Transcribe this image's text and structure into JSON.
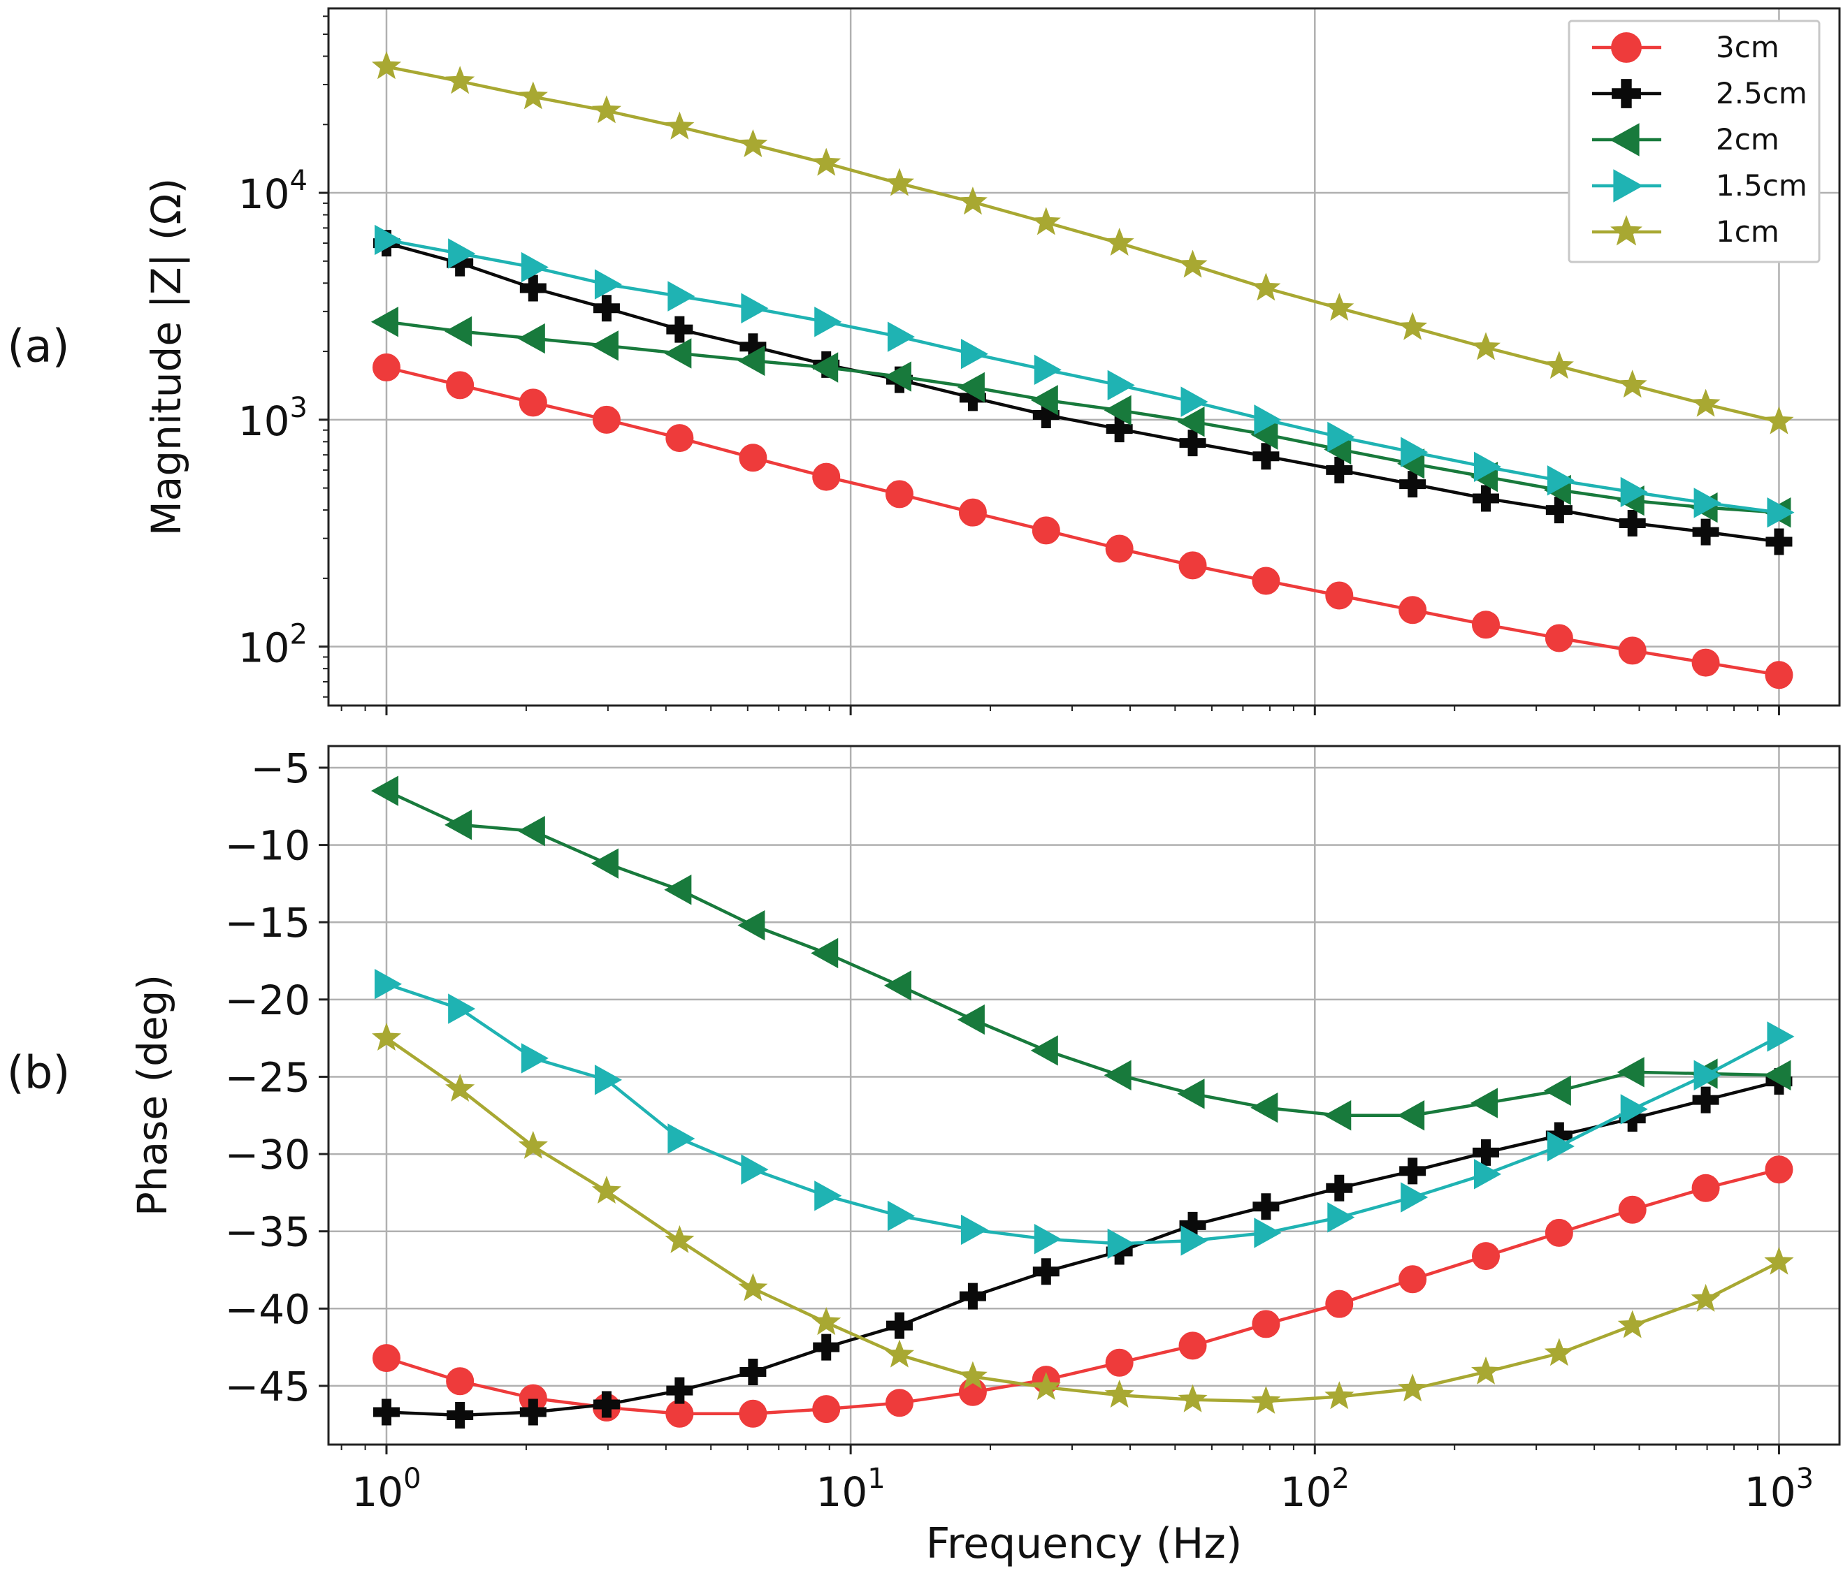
{
  "panels": {
    "a_label": "(a)",
    "b_label": "(b)"
  },
  "colors": {
    "3cm": "#ee3b3b",
    "2.5cm": "#0a0a0a",
    "2cm": "#187a3c",
    "1.5cm": "#1fb3b3",
    "1cm": "#a8a832",
    "grid": "#b0b0b0"
  },
  "chart_data": [
    {
      "type": "line",
      "panel": "(a)",
      "xlabel": "",
      "ylabel": "Magnitude |Z| (Ω)",
      "xscale": "log",
      "yscale": "log",
      "xlim": [
        0.75,
        1350
      ],
      "ylim": [
        55,
        65000
      ],
      "x_ticks": [
        "10^0",
        "10^1",
        "10^2",
        "10^3"
      ],
      "y_ticks": [
        "10^2",
        "10^3",
        "10^4"
      ],
      "grid": true,
      "legend_position": "top-right",
      "x": [
        1,
        1.44,
        2.07,
        2.98,
        4.28,
        6.16,
        8.86,
        12.74,
        18.33,
        26.37,
        37.93,
        54.56,
        78.48,
        112.9,
        162.4,
        233.6,
        336.0,
        483.3,
        695.2,
        1000
      ],
      "series": [
        {
          "name": "3cm",
          "marker": "circle",
          "values": [
            1700,
            1420,
            1190,
            1000,
            830,
            680,
            560,
            470,
            390,
            325,
            270,
            228,
            195,
            168,
            145,
            125,
            109,
            96,
            85,
            75
          ]
        },
        {
          "name": "2.5cm",
          "marker": "plus",
          "values": [
            6000,
            4900,
            3800,
            3100,
            2500,
            2100,
            1750,
            1500,
            1250,
            1050,
            910,
            790,
            690,
            600,
            520,
            450,
            400,
            350,
            320,
            290
          ]
        },
        {
          "name": "2cm",
          "marker": "triangle-left",
          "values": [
            2700,
            2450,
            2280,
            2120,
            1960,
            1820,
            1700,
            1550,
            1390,
            1220,
            1100,
            980,
            860,
            740,
            640,
            560,
            490,
            440,
            410,
            390
          ]
        },
        {
          "name": "1.5cm",
          "marker": "triangle-right",
          "values": [
            6200,
            5400,
            4700,
            3950,
            3500,
            3100,
            2700,
            2320,
            1950,
            1660,
            1420,
            1200,
            1000,
            840,
            720,
            620,
            540,
            480,
            430,
            390
          ]
        },
        {
          "name": "1cm",
          "marker": "star",
          "values": [
            36000,
            31000,
            26500,
            23000,
            19500,
            16300,
            13500,
            11000,
            9100,
            7400,
            6000,
            4800,
            3800,
            3100,
            2550,
            2080,
            1720,
            1420,
            1170,
            980
          ]
        }
      ]
    },
    {
      "type": "line",
      "panel": "(b)",
      "xlabel": "Frequency (Hz)",
      "ylabel": "Phase (deg)",
      "xscale": "log",
      "xlim": [
        0.75,
        1350
      ],
      "ylim": [
        -48.8,
        -3.6
      ],
      "x_ticks": [
        "10^0",
        "10^1",
        "10^2",
        "10^3"
      ],
      "y_ticks": [
        -5,
        -10,
        -15,
        -20,
        -25,
        -30,
        -35,
        -40,
        -45
      ],
      "grid": true,
      "x": [
        1,
        1.44,
        2.07,
        2.98,
        4.28,
        6.16,
        8.86,
        12.74,
        18.33,
        26.37,
        37.93,
        54.56,
        78.48,
        112.9,
        162.4,
        233.6,
        336.0,
        483.3,
        695.2,
        1000
      ],
      "series": [
        {
          "name": "3cm",
          "marker": "circle",
          "values": [
            -43.2,
            -44.7,
            -45.8,
            -46.4,
            -46.8,
            -46.8,
            -46.5,
            -46.1,
            -45.4,
            -44.6,
            -43.5,
            -42.4,
            -41.0,
            -39.7,
            -38.1,
            -36.6,
            -35.1,
            -33.6,
            -32.2,
            -31.0
          ]
        },
        {
          "name": "2.5cm",
          "marker": "plus",
          "values": [
            -46.7,
            -46.9,
            -46.7,
            -46.2,
            -45.3,
            -44.1,
            -42.5,
            -41.1,
            -39.2,
            -37.6,
            -36.3,
            -34.6,
            -33.4,
            -32.2,
            -31.1,
            -29.9,
            -28.8,
            -27.7,
            -26.5,
            -25.3
          ]
        },
        {
          "name": "2cm",
          "marker": "triangle-left",
          "values": [
            -6.5,
            -8.7,
            -9.1,
            -11.2,
            -12.9,
            -15.2,
            -17.0,
            -19.1,
            -21.3,
            -23.3,
            -24.9,
            -26.1,
            -27.0,
            -27.5,
            -27.5,
            -26.7,
            -25.9,
            -24.7,
            -24.8,
            -24.9
          ]
        },
        {
          "name": "1.5cm",
          "marker": "triangle-right",
          "values": [
            -19.0,
            -20.6,
            -23.8,
            -25.2,
            -29.0,
            -31.0,
            -32.7,
            -34.0,
            -34.9,
            -35.5,
            -35.8,
            -35.6,
            -35.1,
            -34.1,
            -32.8,
            -31.3,
            -29.5,
            -27.1,
            -24.9,
            -22.4
          ]
        },
        {
          "name": "1cm",
          "marker": "star",
          "values": [
            -22.5,
            -25.8,
            -29.5,
            -32.4,
            -35.6,
            -38.7,
            -40.9,
            -43.0,
            -44.4,
            -45.1,
            -45.6,
            -45.9,
            -46.0,
            -45.7,
            -45.2,
            -44.1,
            -42.9,
            -41.1,
            -39.4,
            -37.0
          ]
        }
      ]
    }
  ]
}
